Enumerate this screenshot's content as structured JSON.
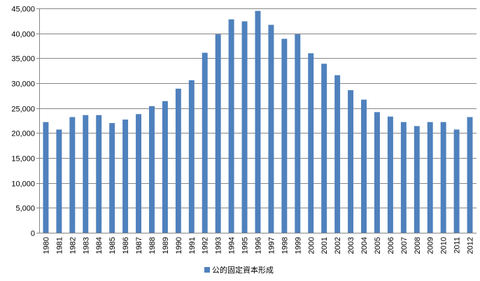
{
  "chart_data": {
    "type": "bar",
    "categories": [
      "1980",
      "1981",
      "1982",
      "1983",
      "1984",
      "1985",
      "1986",
      "1987",
      "1988",
      "1989",
      "1990",
      "1991",
      "1992",
      "1993",
      "1994",
      "1995",
      "1996",
      "1997",
      "1998",
      "1999",
      "2000",
      "2001",
      "2002",
      "2003",
      "2004",
      "2005",
      "2006",
      "2007",
      "2008",
      "2009",
      "2010",
      "2011",
      "2012"
    ],
    "series": [
      {
        "name": "公的固定資本形成",
        "color": "#4f81bd",
        "values": [
          22200,
          20700,
          23200,
          23600,
          23600,
          22000,
          22700,
          23800,
          25400,
          26400,
          28900,
          30600,
          36100,
          39800,
          42800,
          42400,
          44500,
          41700,
          38900,
          39800,
          36000,
          33900,
          31600,
          28600,
          26700,
          24200,
          23300,
          22200,
          21400,
          22200,
          22200,
          20700,
          23200
        ]
      }
    ],
    "ylim": [
      0,
      45000
    ],
    "yticks": [
      0,
      5000,
      10000,
      15000,
      20000,
      25000,
      30000,
      35000,
      40000,
      45000
    ],
    "ytick_labels": [
      "0",
      "5,000",
      "10,000",
      "15,000",
      "20,000",
      "25,000",
      "30,000",
      "35,000",
      "40,000",
      "45,000"
    ],
    "grid": true,
    "legend_position": "bottom",
    "title": "",
    "xlabel": "",
    "ylabel": ""
  }
}
